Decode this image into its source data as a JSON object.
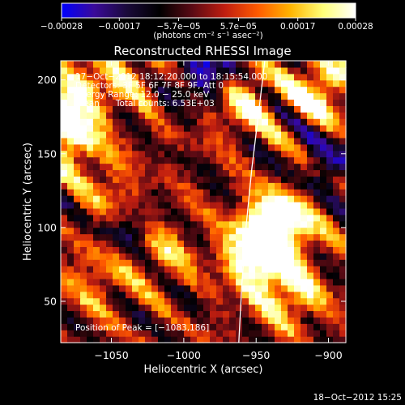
{
  "chart_data": {
    "type": "heatmap",
    "title": "Reconstructed RHESSI Image",
    "xlabel": "Heliocentric X (arcsec)",
    "ylabel": "Heliocentric Y (arcsec)",
    "xlim": [
      -1085,
      -888
    ],
    "ylim": [
      22,
      213
    ],
    "x_ticks": [
      -1050,
      -1000,
      -950,
      -900
    ],
    "x_tick_labels": [
      "−1050",
      "−1000",
      "−950",
      "−900"
    ],
    "y_ticks": [
      50,
      100,
      150,
      200
    ],
    "y_tick_labels": [
      "50",
      "100",
      "150",
      "200"
    ],
    "colorbar": {
      "range": [
        -0.00028,
        0.00028
      ],
      "ticks": [
        -0.00028,
        -0.00017,
        -5.7e-05,
        5.7e-05,
        0.00017,
        0.00028
      ],
      "tick_labels": [
        "−0.00028",
        "−0.00017",
        "−5.7e−05",
        "5.7e−05",
        "0.00017",
        "0.00028"
      ],
      "unit_label": "(photons cm⁻² s⁻¹ asec⁻²)",
      "colormap": [
        "#0000ff",
        "#3a0a9a",
        "#1a0a3a",
        "#000000",
        "#5a0a14",
        "#c01e10",
        "#ff5a00",
        "#ffb400",
        "#ffff78",
        "#ffffff"
      ]
    },
    "info_lines": [
      "17−Oct−2012 18:12:20.000 to 18:15:54.000",
      "Detectors: 3F 5F 6F 7F 8F 9F, Att 0",
      "Energy Range: 12.0 − 25.0 keV",
      "Clean      Total counts: 6.53E+03"
    ],
    "peak_label": "Position of Peak = [−1083,186]",
    "limb_curve": [
      [
        -962,
        22
      ],
      [
        -960,
        60
      ],
      [
        -957,
        100
      ],
      [
        -953,
        140
      ],
      [
        -948,
        180
      ],
      [
        -944,
        213
      ]
    ],
    "bright_sources": [
      {
        "x": -1082,
        "y": 186,
        "level": 1.0
      },
      {
        "x": -1078,
        "y": 160,
        "level": 0.8
      },
      {
        "x": -945,
        "y": 95,
        "level": 0.95
      },
      {
        "x": -930,
        "y": 105,
        "level": 0.85
      },
      {
        "x": -950,
        "y": 75,
        "level": 0.8
      },
      {
        "x": -905,
        "y": 195,
        "level": 0.85
      },
      {
        "x": -958,
        "y": 185,
        "level": 0.7
      },
      {
        "x": -1040,
        "y": 205,
        "level": 0.55
      },
      {
        "x": -1050,
        "y": 120,
        "level": 0.5
      },
      {
        "x": -1015,
        "y": 85,
        "level": 0.5
      },
      {
        "x": -1060,
        "y": 65,
        "level": 0.45
      },
      {
        "x": -925,
        "y": 55,
        "level": 0.7
      }
    ],
    "negative_sources": [
      {
        "x": -985,
        "y": 205,
        "level": 0.7
      },
      {
        "x": -1040,
        "y": 100,
        "level": 0.5
      },
      {
        "x": -900,
        "y": 140,
        "level": 0.45
      }
    ]
  },
  "footer": {
    "timestamp": "18−Oct−2012 15:25"
  }
}
